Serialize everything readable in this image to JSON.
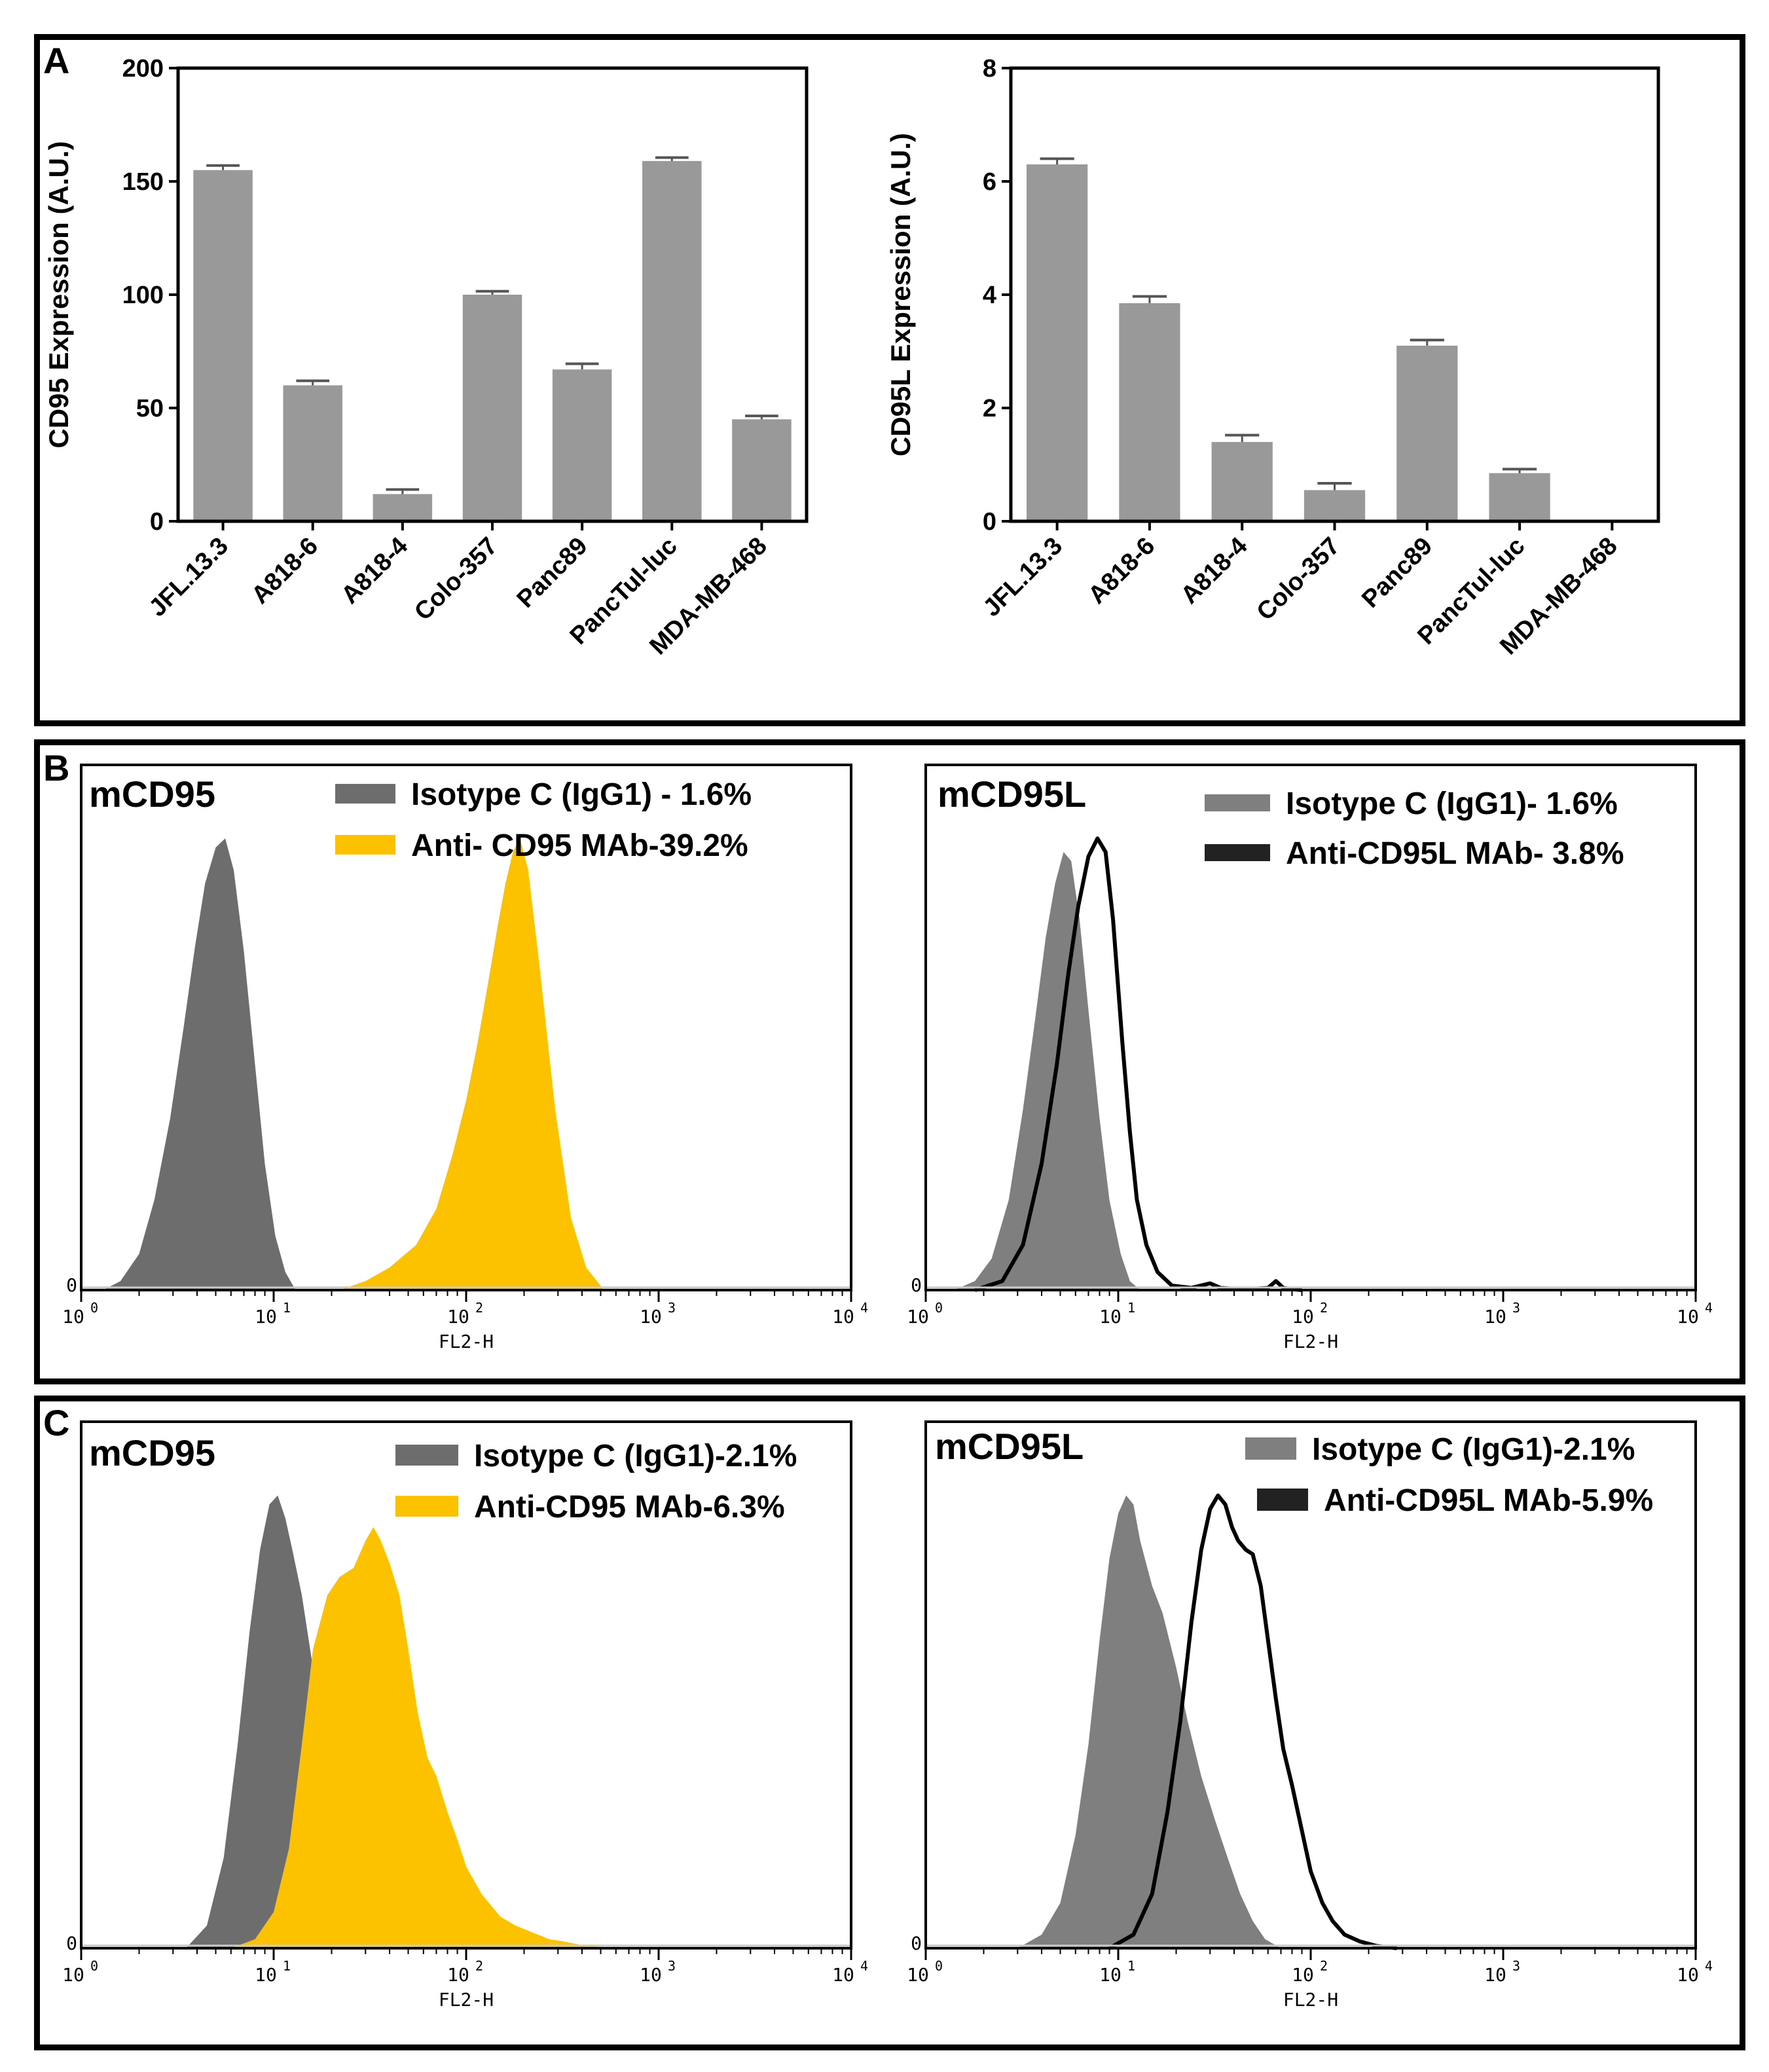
{
  "panels": {
    "a": "A",
    "b": "B",
    "c": "C"
  },
  "chart_data": [
    {
      "id": "a-left",
      "type": "bar",
      "panel": "A",
      "ylabel": "CD95 Expression (A.U.)",
      "xlabel": "",
      "ylim": [
        0,
        200
      ],
      "yticks": [
        0,
        50,
        100,
        150,
        200
      ],
      "categories": [
        "JFL.13.3",
        "A818-6",
        "A818-4",
        "Colo-357",
        "Panc89",
        "PancTul-luc",
        "MDA-MB-468"
      ],
      "values": [
        155,
        60,
        12,
        100,
        67,
        159,
        45
      ],
      "errors": [
        2,
        2,
        2,
        1.5,
        2.5,
        1.5,
        1.5
      ],
      "bar_color": "#999999"
    },
    {
      "id": "a-right",
      "type": "bar",
      "panel": "A",
      "ylabel": "CD95L Expression (A.U.)",
      "xlabel": "",
      "ylim": [
        0,
        8
      ],
      "yticks": [
        0,
        2,
        4,
        6,
        8
      ],
      "categories": [
        "JFL.13.3",
        "A818-6",
        "A818-4",
        "Colo-357",
        "Panc89",
        "PancTul-luc",
        "MDA-MB-468"
      ],
      "values": [
        6.3,
        3.85,
        1.4,
        0.55,
        3.1,
        0.85,
        0
      ],
      "errors": [
        0.1,
        0.12,
        0.12,
        0.12,
        0.1,
        0.07,
        0
      ],
      "bar_color": "#999999"
    },
    {
      "id": "b-left",
      "type": "area",
      "panel": "B",
      "title": "mCD95",
      "xlabel": "FL2-H",
      "xscale": "log",
      "xlim": [
        1,
        10000
      ],
      "xticks": [
        1,
        10,
        100,
        1000,
        10000
      ],
      "y_tick": "0",
      "series": [
        {
          "name": "Isotype C (IgG1) - 1.6%",
          "style": "filled",
          "color": "#6d6d6d",
          "x": [
            1.3,
            1.6,
            2.0,
            2.4,
            2.9,
            3.4,
            3.9,
            4.4,
            5.0,
            5.6,
            6.2,
            7.0,
            8.0,
            9.0,
            10.2,
            11.5,
            13
          ],
          "y": [
            0,
            0.02,
            0.08,
            0.2,
            0.38,
            0.58,
            0.76,
            0.9,
            0.98,
            1.0,
            0.93,
            0.75,
            0.5,
            0.28,
            0.12,
            0.04,
            0
          ]
        },
        {
          "name": "Anti- CD95 MAb-39.2%",
          "style": "filled",
          "color": "#fcc200",
          "x": [
            22,
            30,
            40,
            55,
            70,
            85,
            100,
            115,
            130,
            145,
            160,
            175,
            190,
            210,
            240,
            290,
            350,
            420,
            520
          ],
          "y": [
            0,
            0.02,
            0.05,
            0.1,
            0.18,
            0.3,
            0.42,
            0.55,
            0.68,
            0.8,
            0.9,
            0.97,
            1.0,
            0.93,
            0.72,
            0.4,
            0.16,
            0.05,
            0
          ]
        }
      ]
    },
    {
      "id": "b-right",
      "type": "area",
      "panel": "B",
      "title": "mCD95L",
      "xlabel": "FL2-H",
      "xscale": "log",
      "xlim": [
        1,
        10000
      ],
      "xticks": [
        1,
        10,
        100,
        1000,
        10000
      ],
      "y_tick": "0",
      "series": [
        {
          "name": "Isotype C (IgG1)- 1.6%",
          "style": "filled",
          "color": "#7f7f7f",
          "x": [
            1.4,
            1.8,
            2.2,
            2.7,
            3.2,
            3.7,
            4.2,
            4.7,
            5.2,
            5.7,
            6.3,
            7.0,
            8.0,
            9.0,
            10.3,
            11.5,
            13
          ],
          "y": [
            0,
            0.02,
            0.07,
            0.2,
            0.4,
            0.6,
            0.78,
            0.9,
            0.97,
            0.95,
            0.82,
            0.62,
            0.38,
            0.2,
            0.08,
            0.02,
            0
          ]
        },
        {
          "name": "Anti-CD95L MAb- 3.8%",
          "style": "outline",
          "color": "#000000",
          "x": [
            1.8,
            2.5,
            3.2,
            4.0,
            4.8,
            5.5,
            6.2,
            7.0,
            7.8,
            8.6,
            9.4,
            10.5,
            11.5,
            12.5,
            14,
            16,
            19,
            24,
            30,
            34,
            40,
            50,
            60,
            66,
            72,
            80,
            90
          ],
          "y": [
            0,
            0.02,
            0.1,
            0.28,
            0.5,
            0.7,
            0.85,
            0.96,
            1.0,
            0.97,
            0.82,
            0.55,
            0.35,
            0.2,
            0.1,
            0.04,
            0.01,
            0.005,
            0.015,
            0.005,
            0.003,
            0.003,
            0.005,
            0.02,
            0.005,
            0.002,
            0
          ]
        }
      ]
    },
    {
      "id": "c-left",
      "type": "area",
      "panel": "C",
      "title": "mCD95",
      "xlabel": "FL2-H",
      "xscale": "log",
      "xlim": [
        1,
        10000
      ],
      "xticks": [
        1,
        10,
        100,
        1000,
        10000
      ],
      "y_tick": "0",
      "series": [
        {
          "name": "Isotype C (IgG1)-2.1%",
          "style": "filled",
          "color": "#6d6d6d",
          "x": [
            3.5,
            4.5,
            5.5,
            6.5,
            7.5,
            8.5,
            9.5,
            10.5,
            11.5,
            12.5,
            14,
            16,
            18,
            20,
            23,
            26,
            30
          ],
          "y": [
            0,
            0.05,
            0.2,
            0.45,
            0.7,
            0.88,
            0.98,
            1.0,
            0.95,
            0.88,
            0.78,
            0.62,
            0.42,
            0.22,
            0.08,
            0.02,
            0
          ]
        },
        {
          "name": "Anti-CD95 MAb-6.3%",
          "style": "filled",
          "color": "#fcc200",
          "x": [
            6,
            8,
            10,
            12,
            14,
            16,
            19,
            22,
            26,
            30,
            33,
            36,
            40,
            45,
            50,
            56,
            63,
            70,
            80,
            90,
            100,
            120,
            150,
            180,
            220,
            270,
            320,
            420,
            600
          ],
          "y": [
            0,
            0.02,
            0.08,
            0.22,
            0.45,
            0.66,
            0.78,
            0.82,
            0.84,
            0.9,
            0.93,
            0.9,
            0.85,
            0.78,
            0.66,
            0.52,
            0.42,
            0.38,
            0.3,
            0.24,
            0.18,
            0.12,
            0.07,
            0.05,
            0.035,
            0.02,
            0.015,
            0.005,
            0
          ]
        }
      ]
    },
    {
      "id": "c-right",
      "type": "area",
      "panel": "C",
      "title": "mCD95L",
      "xlabel": "FL2-H",
      "xscale": "log",
      "xlim": [
        1,
        10000
      ],
      "xticks": [
        1,
        10,
        100,
        1000,
        10000
      ],
      "y_tick": "0",
      "series": [
        {
          "name": "Isotype C (IgG1)-2.1%",
          "style": "filled",
          "color": "#7f7f7f",
          "x": [
            3,
            4,
            5,
            6,
            7,
            8,
            9,
            10,
            11,
            12,
            13,
            15,
            17,
            20,
            23,
            27,
            32,
            37,
            43,
            50,
            58,
            70
          ],
          "y": [
            0,
            0.03,
            0.1,
            0.25,
            0.45,
            0.68,
            0.86,
            0.96,
            1.0,
            0.98,
            0.9,
            0.8,
            0.74,
            0.62,
            0.5,
            0.38,
            0.28,
            0.2,
            0.12,
            0.06,
            0.02,
            0
          ]
        },
        {
          "name": "Anti-CD95L MAb-5.9%",
          "style": "outline",
          "color": "#000000",
          "x": [
            9,
            12,
            15,
            18,
            21,
            24,
            27,
            30,
            33,
            36,
            39,
            42,
            46,
            50,
            55,
            60,
            66,
            72,
            80,
            90,
            100,
            115,
            130,
            150,
            180,
            220,
            280
          ],
          "y": [
            0,
            0.03,
            0.12,
            0.3,
            0.5,
            0.72,
            0.88,
            0.97,
            1.0,
            0.98,
            0.93,
            0.9,
            0.88,
            0.87,
            0.8,
            0.68,
            0.55,
            0.44,
            0.36,
            0.26,
            0.17,
            0.1,
            0.06,
            0.03,
            0.015,
            0.005,
            0
          ]
        }
      ]
    }
  ]
}
